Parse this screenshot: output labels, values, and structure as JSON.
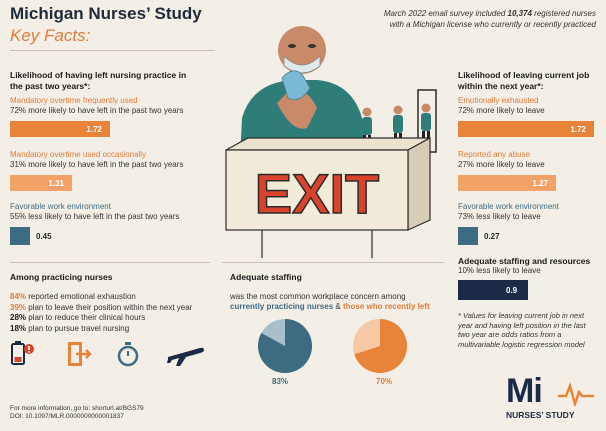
{
  "header": {
    "title": "Michigan Nurses’ Study",
    "subtitle": "Key Facts:",
    "survey_line1_pre": "March 2022 email survey included ",
    "survey_count": "10,374",
    "survey_line1_post": " registered nurses",
    "survey_line2": "with a Michigan license who currently or recently practiced"
  },
  "left": {
    "heading": "Likelihood of having left nursing practice in the past two years*:",
    "items": [
      {
        "label": "Mandatory overtime frequently used",
        "desc": "72% more likely to have left in the past two years",
        "value": "1.72"
      },
      {
        "label": "Mandatory overtime used occasionally",
        "desc": "31% more likely to have left in the past two years",
        "value": "1.31"
      },
      {
        "label": "Favorable work environment",
        "desc": "55% less likely to have left in the past two years",
        "value": "0.45"
      }
    ]
  },
  "right": {
    "heading": "Likelihood of leaving current job within the next year*:",
    "items": [
      {
        "label": "Emotionally exhausted",
        "desc": "72% more likely to leave",
        "value": "1.72"
      },
      {
        "label": "Reported any abuse",
        "desc": "27% more likely to leave",
        "value": "1.27"
      },
      {
        "label": "Favorable work environment",
        "desc": "73% less likely to leave",
        "value": "0.27"
      }
    ],
    "staffing_heading": "Adequate staffing and resources",
    "staffing_desc": "10% less likely to leave",
    "staffing_value": "0.9",
    "footnote": "* Values for leaving current job in next year and having left position in the last two year are odds ratios from a multivariable logistic regression model"
  },
  "sign_text": "EXIT",
  "practicing": {
    "heading": "Among practicing nurses",
    "stats": [
      {
        "pct": "84%",
        "text": " reported emotional exhaustion"
      },
      {
        "pct": "39%",
        "text": " plan to leave their position within the next year"
      },
      {
        "pct": "28%",
        "text": " plan to reduce their clinical hours"
      },
      {
        "pct": "18%",
        "text": " plan to pursue travel nursing"
      }
    ],
    "icons": [
      "low-battery-icon",
      "exit-door-icon",
      "stopwatch-icon",
      "airplane-icon"
    ]
  },
  "staffing": {
    "heading": "Adequate staffing",
    "line1": "was the most common workplace concern among",
    "group1": "currently practicing nurses",
    "amp": " & ",
    "group2": "those who recently left",
    "pies": [
      {
        "label": "83%",
        "value": 0.83,
        "color": "#3d6b82",
        "rest": "#a9c0cc"
      },
      {
        "label": "70%",
        "value": 0.7,
        "color": "#e8833a",
        "rest": "#f5c9a3"
      }
    ]
  },
  "footer": {
    "line1": "For more information, go to: shorturl.at/BGS79",
    "line2": "DOI: 10.1097/MLR.0000000000001837"
  },
  "logo": {
    "mark": "Mi",
    "text": "NURSES’ STUDY"
  },
  "colors": {
    "orange": "#e8833a",
    "blue": "#3d6b82",
    "navy": "#1b2a47",
    "red": "#d9432b"
  }
}
